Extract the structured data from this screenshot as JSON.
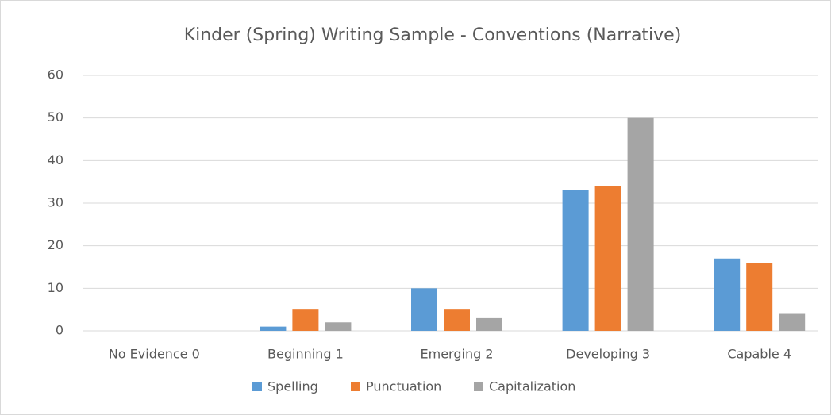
{
  "chart_data": {
    "type": "bar",
    "title": "Kinder (Spring) Writing Sample - Conventions (Narrative)",
    "categories": [
      "No Evidence 0",
      "Beginning 1",
      "Emerging 2",
      "Developing 3",
      "Capable 4"
    ],
    "series": [
      {
        "name": "Spelling",
        "color": "#5b9bd5",
        "values": [
          0,
          1,
          10,
          33,
          17
        ]
      },
      {
        "name": "Punctuation",
        "color": "#ed7d31",
        "values": [
          0,
          5,
          5,
          34,
          16
        ]
      },
      {
        "name": "Capitalization",
        "color": "#a5a5a5",
        "values": [
          0,
          2,
          3,
          50,
          4
        ]
      }
    ],
    "ylim": [
      0,
      60
    ],
    "yticks": [
      0,
      10,
      20,
      30,
      40,
      50,
      60
    ],
    "grid": true,
    "legend": "bottom"
  }
}
